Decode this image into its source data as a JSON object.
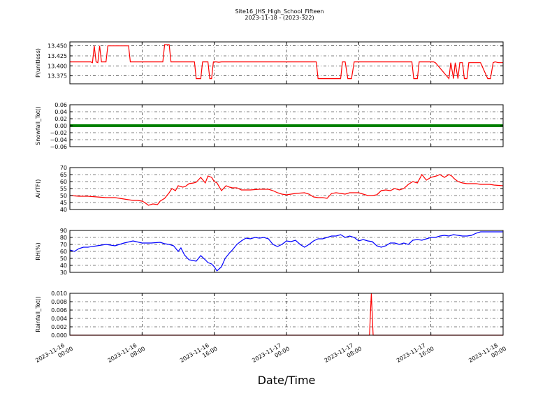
{
  "title_line1": "Site16_JHS_High_School_Fifteen",
  "title_line2": "2023-11-18 - (2023-322)",
  "xlabel": "Date/Time",
  "x_ticks": [
    {
      "l1": "2023-11-16",
      "l2": "00:00",
      "t": 0
    },
    {
      "l1": "2023-11-16",
      "l2": "08:00",
      "t": 8
    },
    {
      "l1": "2023-11-16",
      "l2": "16:00",
      "t": 16
    },
    {
      "l1": "2023-11-17",
      "l2": "00:00",
      "t": 24
    },
    {
      "l1": "2023-11-17",
      "l2": "08:00",
      "t": 32
    },
    {
      "l1": "2023-11-17",
      "l2": "16:00",
      "t": 40
    },
    {
      "l1": "2023-11-18",
      "l2": "00:00",
      "t": 48
    }
  ],
  "colors": {
    "p": "#ff0000",
    "snow": "#008000",
    "air": "#ff0000",
    "rh": "#0000ff",
    "rain": "#ff0000"
  },
  "chart_data": [
    {
      "type": "line",
      "ylabel": "P(unitless)",
      "ylim": [
        13.355,
        13.46
      ],
      "yticks": [
        "13.450",
        "13.425",
        "13.400",
        "13.375"
      ],
      "ytick_values": [
        13.45,
        13.425,
        13.4,
        13.375
      ],
      "color_key": "p",
      "x": [
        0,
        2.3,
        2.5,
        2.7,
        2.9,
        3.1,
        3.3,
        3.5,
        4.0,
        4.2,
        6.5,
        6.7,
        10.3,
        10.5,
        11.0,
        11.2,
        13.8,
        14.0,
        14.5,
        14.7,
        15.3,
        15.5,
        15.7,
        15.9,
        16.2,
        16.5,
        16.8,
        27.3,
        27.5,
        28.0,
        28.2,
        30.0,
        30.2,
        30.5,
        30.8,
        31.2,
        31.5,
        31.8,
        32.0,
        35.5,
        37.9,
        38.1,
        38.5,
        38.7,
        40.3,
        40.5,
        42.0,
        42.2,
        42.5,
        42.7,
        43.0,
        43.2,
        43.5,
        43.7,
        44.0,
        44.2,
        44.5,
        44.7,
        45.0,
        45.3,
        45.5,
        46.3,
        46.6,
        46.9,
        47.1,
        47.5,
        48.0
      ],
      "values": [
        13.41,
        13.41,
        13.408,
        13.45,
        13.41,
        13.408,
        13.45,
        13.41,
        13.41,
        13.45,
        13.45,
        13.41,
        13.41,
        13.453,
        13.453,
        13.41,
        13.41,
        13.368,
        13.368,
        13.41,
        13.41,
        13.368,
        13.368,
        13.41,
        13.41,
        13.409,
        13.41,
        13.41,
        13.368,
        13.368,
        13.368,
        13.368,
        13.41,
        13.41,
        13.368,
        13.368,
        13.41,
        13.41,
        13.41,
        13.41,
        13.41,
        13.368,
        13.368,
        13.41,
        13.41,
        13.408,
        13.368,
        13.408,
        13.368,
        13.408,
        13.368,
        13.408,
        13.408,
        13.368,
        13.368,
        13.408,
        13.408,
        13.408,
        13.408,
        13.408,
        13.408,
        13.368,
        13.368,
        13.408,
        13.41,
        13.408,
        13.408
      ]
    },
    {
      "type": "line",
      "ylabel": "Snowfall_Tot()",
      "ylim": [
        -0.06,
        0.06
      ],
      "yticks": [
        "0.06",
        "0.04",
        "0.02",
        "0.00",
        "−0.02",
        "−0.04",
        "−0.06"
      ],
      "ytick_values": [
        0.06,
        0.04,
        0.02,
        0,
        -0.02,
        -0.04,
        -0.06
      ],
      "color_key": "snow",
      "x": [
        0,
        48
      ],
      "values": [
        0,
        0
      ]
    },
    {
      "type": "line",
      "ylabel": "AirTF()",
      "ylim": [
        40,
        70
      ],
      "yticks": [
        "70",
        "65",
        "60",
        "55",
        "50",
        "45",
        "40"
      ],
      "ytick_values": [
        70,
        65,
        60,
        55,
        50,
        45,
        40
      ],
      "color_key": "air",
      "x": [
        0,
        1,
        2,
        3,
        4,
        5,
        6,
        7,
        7.5,
        8,
        8.3,
        8.7,
        9.2,
        9.7,
        10,
        10.5,
        11,
        11.3,
        11.7,
        12,
        12.5,
        12.8,
        13.2,
        13.7,
        14,
        14.5,
        15,
        15.3,
        15.7,
        16,
        16.3,
        16.8,
        17.3,
        17.7,
        18,
        18.5,
        19,
        20,
        21,
        22,
        22.5,
        23,
        23.5,
        24,
        24.5,
        25,
        26,
        26.5,
        27,
        27.5,
        28,
        28.5,
        29,
        29.5,
        30,
        30.5,
        31,
        31.5,
        32,
        32.5,
        33,
        33.5,
        34,
        34.5,
        35,
        35.5,
        36,
        36.5,
        37,
        37.5,
        38,
        38.5,
        39,
        39.5,
        40,
        40.3,
        40.6,
        41,
        41.5,
        42,
        42.3,
        42.6,
        43,
        43.5,
        44,
        44.5,
        45,
        45.5,
        46,
        46.5,
        47,
        48
      ],
      "values": [
        50,
        49.5,
        49.5,
        49,
        48.5,
        48.5,
        47.5,
        46.5,
        46.5,
        46,
        45,
        43,
        44,
        43.5,
        46,
        48,
        52,
        55,
        53.5,
        57,
        56,
        56.5,
        58.5,
        59,
        59.5,
        63,
        59,
        64,
        63,
        60,
        59,
        53.5,
        57,
        56,
        55.5,
        55.5,
        54,
        54,
        54.5,
        54.5,
        53.5,
        52,
        51,
        50.5,
        51,
        51.5,
        52,
        51,
        49,
        48.5,
        48.5,
        48,
        51.5,
        52,
        51.5,
        51,
        52,
        52,
        52,
        51,
        50,
        50,
        50.5,
        53.5,
        54,
        53.5,
        55,
        54,
        55,
        58,
        60,
        59,
        65,
        61,
        63,
        63.5,
        64,
        65,
        63,
        65,
        64,
        62,
        60,
        59,
        58.5,
        58.5,
        58.5,
        58,
        58,
        58,
        57.5,
        57
      ]
    },
    {
      "type": "line",
      "ylabel": "RH(%)",
      "ylim": [
        30,
        90
      ],
      "yticks": [
        "90",
        "80",
        "70",
        "60",
        "50",
        "40",
        "30"
      ],
      "ytick_values": [
        90,
        80,
        70,
        60,
        50,
        40,
        30
      ],
      "color_key": "rh",
      "x": [
        0,
        0.5,
        1,
        1.5,
        2,
        3,
        4,
        5,
        6,
        7,
        8,
        9,
        10,
        10.5,
        11,
        11.5,
        12,
        12.3,
        12.7,
        13.2,
        13.6,
        14,
        14.5,
        15,
        15.3,
        15.7,
        16,
        16.3,
        16.8,
        17.2,
        17.7,
        18,
        18.5,
        19,
        19.5,
        20,
        20.5,
        21,
        21.5,
        22,
        22.5,
        23,
        23.5,
        24,
        24.5,
        25,
        25.5,
        26,
        26.5,
        27,
        27.5,
        28,
        28.5,
        29,
        29.5,
        30,
        30.5,
        31,
        31.5,
        32,
        32.5,
        33,
        33.5,
        34,
        34.5,
        35,
        35.5,
        36,
        36.5,
        37,
        37.5,
        38,
        38.5,
        39,
        39.5,
        40,
        40.5,
        41,
        41.5,
        42,
        42.5,
        43,
        43.5,
        44,
        44.5,
        45,
        45.5,
        46,
        46.5,
        47,
        47.5,
        48
      ],
      "values": [
        62,
        60,
        64,
        66,
        66,
        68,
        70,
        68,
        72,
        75,
        72,
        72,
        73,
        71,
        70,
        68,
        60,
        65,
        55,
        48,
        47,
        46,
        54,
        48,
        44,
        42,
        38,
        32,
        38,
        50,
        58,
        62,
        70,
        75,
        79,
        78,
        80,
        79,
        80,
        78,
        70,
        67,
        70,
        75,
        74,
        76,
        70,
        66,
        70,
        75,
        78,
        78,
        80,
        82,
        82,
        84,
        80,
        82,
        80,
        75,
        77,
        75,
        74,
        68,
        66,
        68,
        72,
        72,
        70,
        72,
        70,
        76,
        77,
        76,
        78,
        80,
        80,
        82,
        83,
        82,
        84,
        83,
        82,
        82,
        83,
        86,
        88,
        88,
        88,
        88,
        88,
        88
      ]
    },
    {
      "type": "line",
      "ylabel": "Rainfall_Tot()",
      "ylim": [
        0,
        0.01
      ],
      "yticks": [
        "0.010",
        "0.008",
        "0.006",
        "0.004",
        "0.002",
        "0.000"
      ],
      "ytick_values": [
        0.01,
        0.008,
        0.006,
        0.004,
        0.002,
        0
      ],
      "color_key": "rain",
      "x": [
        0,
        33.2,
        33.4,
        33.6,
        48
      ],
      "values": [
        0,
        0,
        0.01,
        0,
        0
      ]
    }
  ]
}
